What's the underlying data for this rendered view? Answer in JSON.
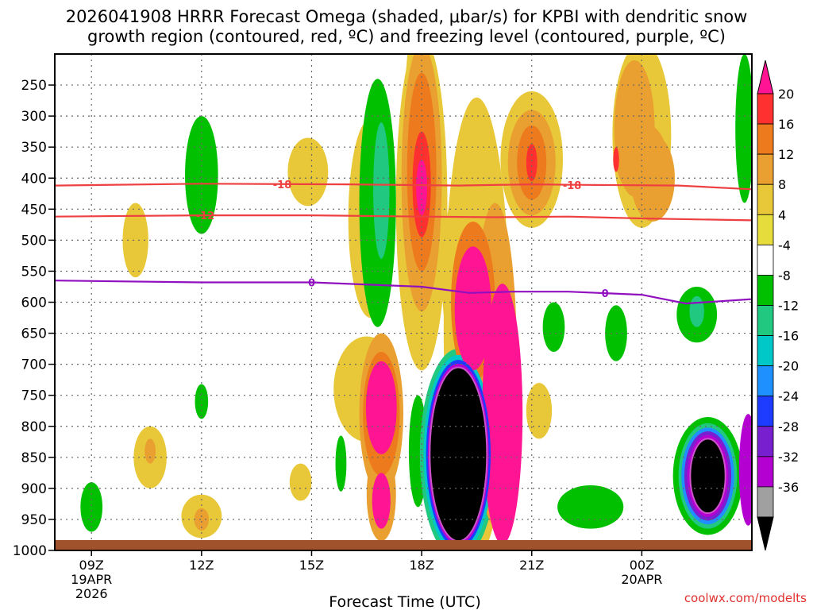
{
  "chart_data": {
    "type": "heatmap",
    "title_line1": "2026041908 HRRR Forecast Omega (shaded, μbar/s) for KPBI with dendritic snow",
    "title_line2": "growth region (contoured, red, ºC) and freezing level (contoured, purple, ºC)",
    "xlabel": "Forecast Time (UTC)",
    "x_ticks": [
      {
        "hour": 9,
        "label": "09Z",
        "sub1": "19APR",
        "sub2": "2026"
      },
      {
        "hour": 12,
        "label": "12Z",
        "sub1": "",
        "sub2": ""
      },
      {
        "hour": 15,
        "label": "15Z",
        "sub1": "",
        "sub2": ""
      },
      {
        "hour": 18,
        "label": "18Z",
        "sub1": "",
        "sub2": ""
      },
      {
        "hour": 21,
        "label": "21Z",
        "sub1": "",
        "sub2": ""
      },
      {
        "hour": 24,
        "label": "00Z",
        "sub1": "20APR",
        "sub2": ""
      }
    ],
    "x_range_hours": [
      8.0,
      27.0
    ],
    "y_ticks": [
      250,
      300,
      350,
      400,
      450,
      500,
      550,
      600,
      650,
      700,
      750,
      800,
      850,
      900,
      950,
      1000
    ],
    "y_range_mb": [
      200,
      1000
    ],
    "colorbar": {
      "labels": [
        "20",
        "16",
        "12",
        "8",
        "4",
        "-4",
        "-8",
        "-12",
        "-16",
        "-20",
        "-24",
        "-28",
        "-32",
        "-36"
      ],
      "colors": [
        "#ff1493",
        "#ff3030",
        "#ee7a1e",
        "#e9a030",
        "#e8c838",
        "#e6dc3c",
        "#ffffff",
        "#00c000",
        "#20c880",
        "#00c8c8",
        "#1e90ff",
        "#1e3cff",
        "#7820d0",
        "#b400d0",
        "#a0a0a0",
        "#000000"
      ]
    },
    "contours": [
      {
        "name": "dgz-minus18",
        "color": "#ee4040",
        "label": "-18",
        "points": [
          [
            8.0,
            412
          ],
          [
            12.0,
            409
          ],
          [
            16.0,
            410
          ],
          [
            19.0,
            412
          ],
          [
            21.0,
            410
          ],
          [
            22.5,
            411
          ],
          [
            25.0,
            412
          ],
          [
            27.0,
            418
          ]
        ]
      },
      {
        "name": "dgz-minus12",
        "color": "#ee4040",
        "label": "-12",
        "points": [
          [
            8.0,
            462
          ],
          [
            12.0,
            460
          ],
          [
            15.0,
            460
          ],
          [
            18.0,
            462
          ],
          [
            20.0,
            463
          ],
          [
            22.0,
            462
          ],
          [
            24.0,
            465
          ],
          [
            27.0,
            468
          ]
        ]
      },
      {
        "name": "freezing-level-0",
        "color": "#9010c0",
        "label": "0",
        "points": [
          [
            8.0,
            565
          ],
          [
            12.0,
            568
          ],
          [
            15.0,
            568
          ],
          [
            18.0,
            575
          ],
          [
            19.3,
            585
          ],
          [
            20.5,
            583
          ],
          [
            22.0,
            583
          ],
          [
            24.0,
            588
          ],
          [
            25.2,
            602
          ],
          [
            27.0,
            595
          ]
        ]
      }
    ],
    "omega_features": [
      {
        "t": 12.0,
        "p": 395,
        "rt": 0.45,
        "rp": 95,
        "v": -6
      },
      {
        "t": 10.2,
        "p": 500,
        "rt": 0.35,
        "rp": 60,
        "v": 5
      },
      {
        "t": 14.9,
        "p": 390,
        "rt": 0.55,
        "rp": 55,
        "v": 5
      },
      {
        "t": 16.6,
        "p": 465,
        "rt": 0.6,
        "rp": 160,
        "v": 5
      },
      {
        "t": 16.8,
        "p": 440,
        "rt": 0.5,
        "rp": 200,
        "v": -7
      },
      {
        "t": 16.9,
        "p": 420,
        "rt": 0.22,
        "rp": 110,
        "v": -10
      },
      {
        "t": 17.9,
        "p": 280,
        "rt": 0.35,
        "rp": 140,
        "v": 5
      },
      {
        "t": 18.0,
        "p": 440,
        "rt": 0.7,
        "rp": 270,
        "v": 5
      },
      {
        "t": 18.0,
        "p": 400,
        "rt": 0.55,
        "rp": 215,
        "v": 9
      },
      {
        "t": 18.0,
        "p": 390,
        "rt": 0.4,
        "rp": 160,
        "v": 13
      },
      {
        "t": 18.0,
        "p": 410,
        "rt": 0.25,
        "rp": 85,
        "v": 17
      },
      {
        "t": 18.0,
        "p": 415,
        "rt": 0.15,
        "rp": 45,
        "v": 21
      },
      {
        "t": 19.3,
        "p": 560,
        "rt": 0.75,
        "rp": 170,
        "v": 5
      },
      {
        "t": 19.5,
        "p": 640,
        "rt": 0.9,
        "rp": 370,
        "v": 5
      },
      {
        "t": 19.4,
        "p": 600,
        "rt": 0.6,
        "rp": 130,
        "v": 13
      },
      {
        "t": 19.4,
        "p": 610,
        "rt": 0.5,
        "rp": 100,
        "v": 21
      },
      {
        "t": 20.2,
        "p": 780,
        "rt": 0.55,
        "rp": 210,
        "v": 21
      },
      {
        "t": 20.0,
        "p": 700,
        "rt": 0.6,
        "rp": 260,
        "v": 9
      },
      {
        "t": 21.0,
        "p": 370,
        "rt": 0.85,
        "rp": 110,
        "v": 5
      },
      {
        "t": 21.0,
        "p": 375,
        "rt": 0.65,
        "rp": 85,
        "v": 9
      },
      {
        "t": 21.0,
        "p": 375,
        "rt": 0.4,
        "rp": 60,
        "v": 13
      },
      {
        "t": 21.0,
        "p": 375,
        "rt": 0.15,
        "rp": 30,
        "v": 18
      },
      {
        "t": 24.0,
        "p": 330,
        "rt": 0.8,
        "rp": 150,
        "v": 5
      },
      {
        "t": 23.8,
        "p": 320,
        "rt": 0.55,
        "rp": 110,
        "v": 9
      },
      {
        "t": 24.0,
        "p": 370,
        "rt": 0.7,
        "rp": 60,
        "v": 11
      },
      {
        "t": 23.3,
        "p": 370,
        "rt": 0.08,
        "rp": 20,
        "v": 18
      },
      {
        "t": 24.3,
        "p": 400,
        "rt": 0.6,
        "rp": 70,
        "v": 9
      },
      {
        "t": 24.0,
        "p": 260,
        "rt": 0.55,
        "rp": 70,
        "v": 5
      },
      {
        "t": 26.8,
        "p": 320,
        "rt": 0.25,
        "rp": 120,
        "v": -6
      },
      {
        "t": 10.6,
        "p": 850,
        "rt": 0.45,
        "rp": 50,
        "v": 5
      },
      {
        "t": 10.6,
        "p": 840,
        "rt": 0.15,
        "rp": 20,
        "v": 9
      },
      {
        "t": 12.0,
        "p": 945,
        "rt": 0.55,
        "rp": 35,
        "v": 5
      },
      {
        "t": 12.0,
        "p": 950,
        "rt": 0.2,
        "rp": 18,
        "v": 9
      },
      {
        "t": 12.0,
        "p": 760,
        "rt": 0.18,
        "rp": 28,
        "v": -6
      },
      {
        "t": 9.0,
        "p": 930,
        "rt": 0.3,
        "rp": 40,
        "v": -6
      },
      {
        "t": 14.7,
        "p": 890,
        "rt": 0.3,
        "rp": 30,
        "v": 5
      },
      {
        "t": 15.8,
        "p": 860,
        "rt": 0.15,
        "rp": 45,
        "v": -6
      },
      {
        "t": 16.5,
        "p": 740,
        "rt": 0.9,
        "rp": 85,
        "v": 5
      },
      {
        "t": 16.9,
        "p": 780,
        "rt": 0.6,
        "rp": 130,
        "v": 9
      },
      {
        "t": 16.9,
        "p": 780,
        "rt": 0.5,
        "rp": 100,
        "v": 13
      },
      {
        "t": 16.9,
        "p": 770,
        "rt": 0.42,
        "rp": 75,
        "v": 21
      },
      {
        "t": 16.9,
        "p": 920,
        "rt": 0.25,
        "rp": 45,
        "v": 21
      },
      {
        "t": 16.9,
        "p": 910,
        "rt": 0.4,
        "rp": 75,
        "v": 9
      },
      {
        "t": 17.9,
        "p": 840,
        "rt": 0.25,
        "rp": 90,
        "v": -6
      },
      {
        "t": 19.0,
        "p": 845,
        "rt": 1.05,
        "rp": 170,
        "v": -8
      },
      {
        "t": 19.0,
        "p": 845,
        "rt": 0.95,
        "rp": 160,
        "v": -14
      },
      {
        "t": 19.0,
        "p": 845,
        "rt": 0.88,
        "rp": 152,
        "v": -22
      },
      {
        "t": 19.0,
        "p": 845,
        "rt": 0.83,
        "rp": 146,
        "v": -30
      },
      {
        "t": 19.0,
        "p": 845,
        "rt": 0.78,
        "rp": 140,
        "v": -40
      },
      {
        "t": 19.9,
        "p": 780,
        "rt": 0.45,
        "rp": 70,
        "v": 5
      },
      {
        "t": 21.2,
        "p": 775,
        "rt": 0.35,
        "rp": 45,
        "v": 5
      },
      {
        "t": 21.6,
        "p": 640,
        "rt": 0.3,
        "rp": 40,
        "v": -6
      },
      {
        "t": 23.3,
        "p": 650,
        "rt": 0.3,
        "rp": 45,
        "v": -6
      },
      {
        "t": 22.6,
        "p": 930,
        "rt": 0.9,
        "rp": 35,
        "v": -6
      },
      {
        "t": 25.5,
        "p": 620,
        "rt": 0.55,
        "rp": 45,
        "v": -6
      },
      {
        "t": 25.5,
        "p": 615,
        "rt": 0.2,
        "rp": 25,
        "v": -9
      },
      {
        "t": 25.8,
        "p": 880,
        "rt": 0.95,
        "rp": 95,
        "v": -6
      },
      {
        "t": 25.8,
        "p": 880,
        "rt": 0.8,
        "rp": 85,
        "v": -11
      },
      {
        "t": 25.8,
        "p": 880,
        "rt": 0.72,
        "rp": 78,
        "v": -18
      },
      {
        "t": 25.8,
        "p": 880,
        "rt": 0.64,
        "rp": 72,
        "v": -26
      },
      {
        "t": 25.8,
        "p": 880,
        "rt": 0.56,
        "rp": 66,
        "v": -30
      },
      {
        "t": 25.8,
        "p": 880,
        "rt": 0.48,
        "rp": 60,
        "v": -40
      },
      {
        "t": 26.9,
        "p": 870,
        "rt": 0.25,
        "rp": 90,
        "v": -30
      }
    ]
  },
  "watermark": "coolwx.com/modelts"
}
